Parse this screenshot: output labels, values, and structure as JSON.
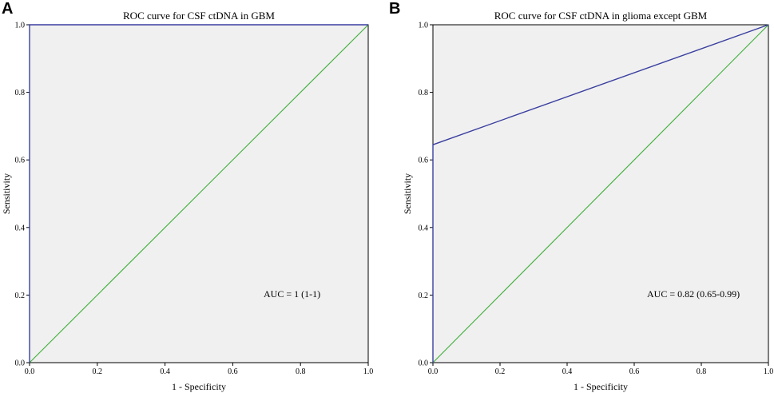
{
  "chart_data": [
    {
      "panel": "A",
      "type": "line",
      "title": "ROC curve for CSF ctDNA in GBM",
      "xlabel": "1 - Specificity",
      "ylabel": "Sensitivity",
      "xlim": [
        0,
        1
      ],
      "ylim": [
        0,
        1
      ],
      "xticks": [
        "0.0",
        "0.2",
        "0.4",
        "0.6",
        "0.8",
        "1.0"
      ],
      "yticks": [
        "0.0",
        "0.2",
        "0.4",
        "0.6",
        "0.8",
        "1.0"
      ],
      "annotation": "AUC = 1 (1-1)",
      "grid": false,
      "series": [
        {
          "role": "roc",
          "color": "#3a3fa0",
          "x": [
            0,
            0,
            1
          ],
          "y": [
            0,
            1,
            1
          ]
        },
        {
          "role": "reference",
          "color": "#3fae3a",
          "x": [
            0,
            1
          ],
          "y": [
            0,
            1
          ]
        }
      ]
    },
    {
      "panel": "B",
      "type": "line",
      "title": "ROC curve for CSF ctDNA in glioma except GBM",
      "xlabel": "1 - Specificity",
      "ylabel": "Sensitivity",
      "xlim": [
        0,
        1
      ],
      "ylim": [
        0,
        1
      ],
      "xticks": [
        "0.0",
        "0.2",
        "0.4",
        "0.6",
        "0.8",
        "1.0"
      ],
      "yticks": [
        "0.0",
        "0.2",
        "0.4",
        "0.6",
        "0.8",
        "1.0"
      ],
      "annotation": "AUC = 0.82 (0.65-0.99)",
      "grid": false,
      "series": [
        {
          "role": "roc",
          "color": "#3a3fa0",
          "x": [
            0,
            0,
            1
          ],
          "y": [
            0,
            0.645,
            1
          ]
        },
        {
          "role": "reference",
          "color": "#3fae3a",
          "x": [
            0,
            1
          ],
          "y": [
            0,
            1
          ]
        }
      ]
    }
  ]
}
